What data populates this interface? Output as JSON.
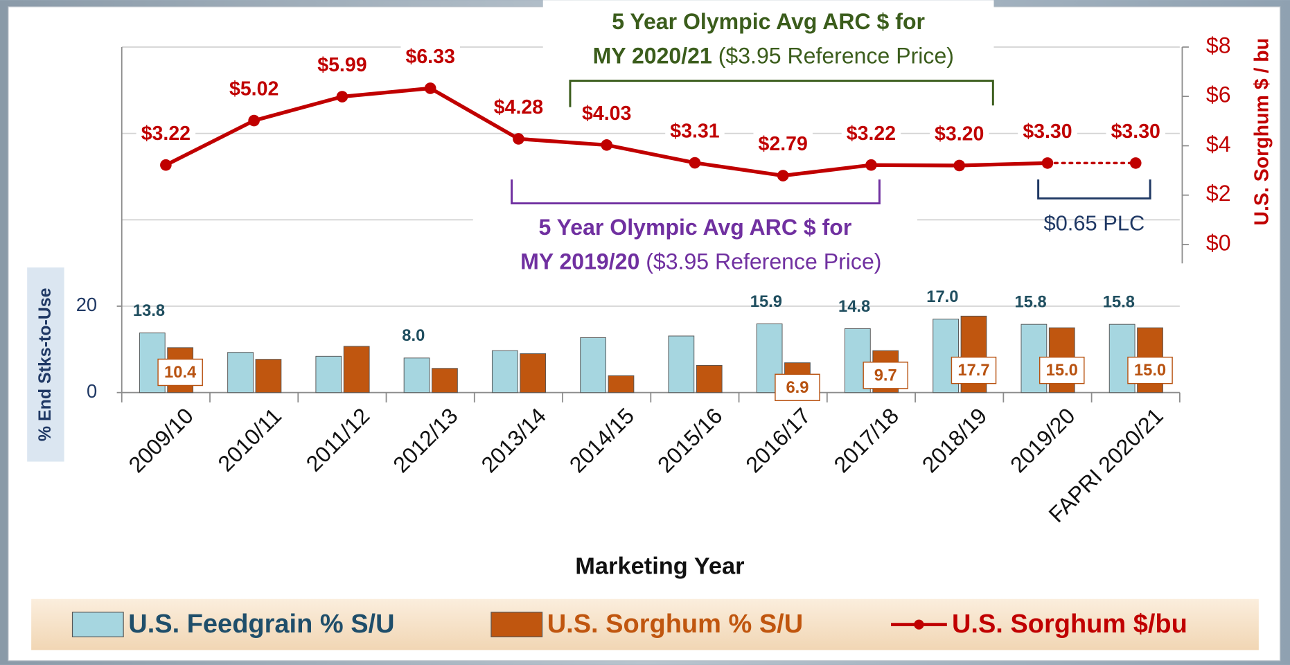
{
  "chart_data": {
    "type": "bar_line",
    "x_label": "Marketing Year",
    "y_label": "% End Stks-to-Use",
    "y2_label": "U.S. Sorghum $ / bu",
    "categories": [
      "2009/10",
      "2010/11",
      "2011/12",
      "2012/13",
      "2013/14",
      "2014/15",
      "2015/16",
      "2016/17",
      "2017/18",
      "2018/19",
      "2019/20",
      "FAPRI 2020/21"
    ],
    "ylim": [
      0,
      80
    ],
    "yticks": [
      0,
      20
    ],
    "ygrid": [
      20,
      40,
      60,
      80
    ],
    "y2lim": [
      -6,
      8
    ],
    "y2ticks": [
      {
        "value": 0,
        "label": "$0"
      },
      {
        "value": 2,
        "label": "$2"
      },
      {
        "value": 4,
        "label": "$4"
      },
      {
        "value": 6,
        "label": "$6"
      },
      {
        "value": 8,
        "label": "$8"
      }
    ],
    "grid": true,
    "legend": "bottom",
    "series": [
      {
        "name": "U.S. Feedgrain % S/U",
        "type": "bar",
        "color": "#a6d6e0",
        "label_color": "#1f4e5f",
        "values": [
          13.8,
          9.3,
          8.4,
          8.0,
          9.7,
          12.7,
          13.1,
          15.9,
          14.8,
          17.0,
          15.8,
          15.8
        ],
        "value_labels": [
          "13.8",
          null,
          null,
          "8.0",
          null,
          null,
          null,
          "15.9",
          "14.8",
          "17.0",
          "15.8",
          "15.8"
        ]
      },
      {
        "name": "U.S. Sorghum % S/U",
        "type": "bar",
        "color": "#c0560f",
        "label_color": "#b85210",
        "values": [
          10.4,
          7.7,
          10.7,
          5.6,
          9.0,
          3.9,
          6.3,
          6.9,
          9.7,
          17.7,
          15.0,
          15.0
        ],
        "value_labels": [
          "10.4",
          null,
          null,
          null,
          null,
          null,
          null,
          "6.9",
          "9.7",
          "17.7",
          "15.0",
          "15.0"
        ]
      },
      {
        "name": "U.S. Sorghum $/bu",
        "type": "line",
        "axis": "y2",
        "color": "#c00000",
        "dotted_from": 10,
        "values": [
          3.22,
          5.02,
          5.99,
          6.33,
          4.28,
          4.03,
          3.31,
          2.79,
          3.22,
          3.2,
          3.3,
          3.3
        ],
        "value_labels": [
          "$3.22",
          "$5.02",
          "$5.99",
          "$6.33",
          "$4.28",
          "$4.03",
          "$3.31",
          "$2.79",
          "$3.22",
          "$3.20",
          "$3.30",
          "$3.30"
        ]
      }
    ],
    "annotations": {
      "arc_2020": [
        "5 Year Olympic Avg ARC $ for",
        "MY 2020/21",
        "($3.95 Reference Price)"
      ],
      "arc_2019": [
        "5 Year Olympic Avg ARC $ for",
        "MY 2019/20",
        "($3.95 Reference Price)"
      ],
      "plc": "$0.65 PLC"
    }
  }
}
